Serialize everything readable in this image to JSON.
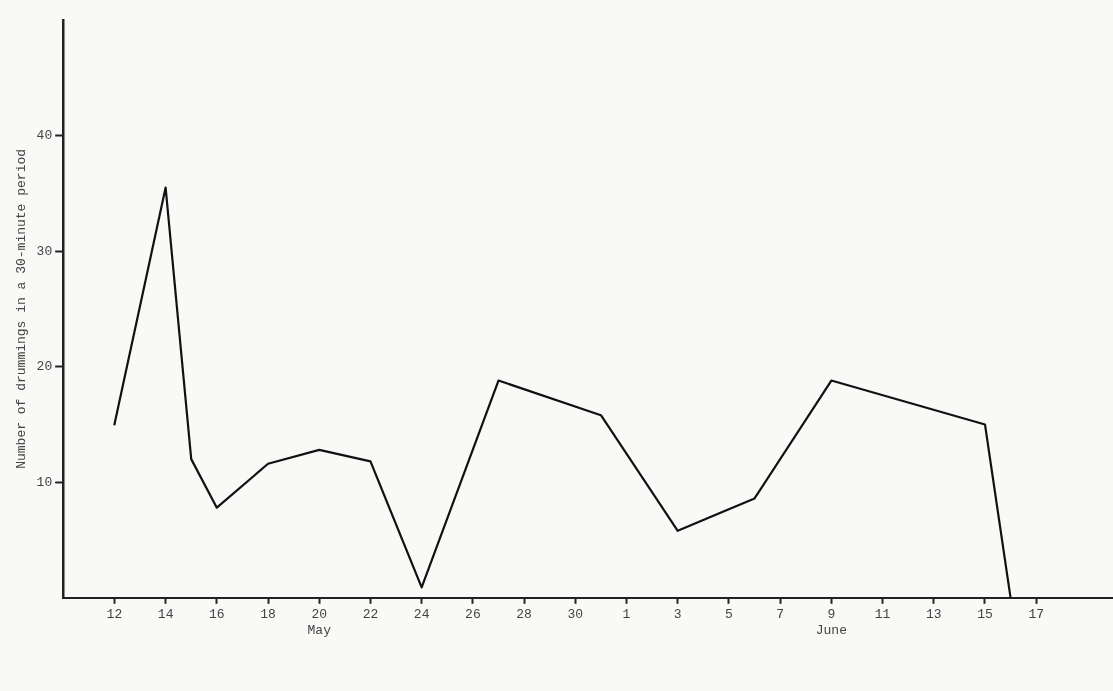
{
  "chart_data": {
    "type": "line",
    "ylabel": "Number of drummings in a 30-minute period",
    "x": [
      "--05-12",
      "--05-14",
      "--05-15",
      "--05-16",
      "--05-18",
      "--05-20",
      "--05-22",
      "--05-24",
      "--05-27",
      "--05-31",
      "--06-03",
      "--06-06",
      "--06-09",
      "--06-15",
      "--06-16"
    ],
    "series": [
      {
        "color": "#111111",
        "values": [
          15,
          35.5,
          12,
          7.8,
          11.6,
          12.8,
          11.8,
          0.9,
          18.8,
          15.8,
          5.8,
          8.6,
          18.8,
          15,
          0
        ]
      }
    ],
    "xlim": [
      "--05-10",
      "--06-20"
    ],
    "xticks": [
      {
        "value": "--05-12",
        "label": "12"
      },
      {
        "value": "--05-14",
        "label": "14"
      },
      {
        "value": "--05-16",
        "label": "16"
      },
      {
        "value": "--05-18",
        "label": "18"
      },
      {
        "value": "--05-20",
        "label": "20\nMay"
      },
      {
        "value": "--05-22",
        "label": "22"
      },
      {
        "value": "--05-24",
        "label": "24"
      },
      {
        "value": "--05-26",
        "label": "26"
      },
      {
        "value": "--05-28",
        "label": "28"
      },
      {
        "value": "--05-30",
        "label": "30"
      },
      {
        "value": "--06-01",
        "label": "1"
      },
      {
        "value": "--06-03",
        "label": "3"
      },
      {
        "value": "--06-05",
        "label": "5"
      },
      {
        "value": "--06-07",
        "label": "7"
      },
      {
        "value": "--06-09",
        "label": "9\nJune"
      },
      {
        "value": "--06-11",
        "label": "11"
      },
      {
        "value": "--06-13",
        "label": "13"
      },
      {
        "value": "--06-15",
        "label": "15"
      },
      {
        "value": "--06-17",
        "label": "17"
      }
    ],
    "ylim": [
      0,
      50
    ],
    "yticks": [
      10,
      20,
      30,
      40
    ],
    "marker": "none",
    "line_style": "solid"
  }
}
